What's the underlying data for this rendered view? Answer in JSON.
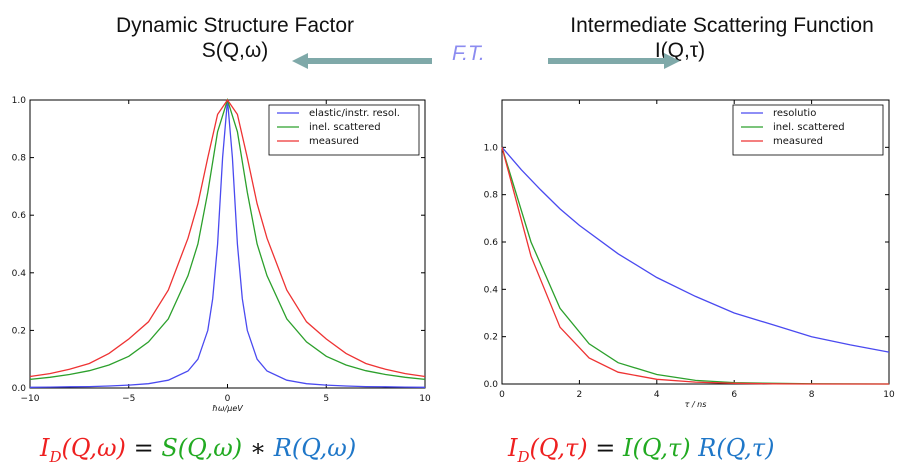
{
  "header": {
    "left_title": "Dynamic Structure Factor",
    "left_sub": "S(Q,ω)",
    "right_title": "Intermediate Scattering Function",
    "right_sub": "I(Q,τ)",
    "center": "F.T."
  },
  "colors": {
    "blue": "#4a4af0",
    "green": "#2ca02c",
    "red": "#ee3333",
    "arrow": "#7fa9a9"
  },
  "equations": {
    "left": {
      "lhs": "I",
      "lhs_sub": "D",
      "lhs_args": "(Q,ω)",
      "eq": "=",
      "t1": "S(Q,ω)",
      "op": "∗",
      "t2": "R(Q,ω)"
    },
    "right": {
      "lhs": "I",
      "lhs_sub": "D",
      "lhs_args": "(Q,τ)",
      "eq": "=",
      "t1": "I(Q,τ)",
      "t2": "R(Q,τ)"
    }
  },
  "chart_data": [
    {
      "type": "line",
      "xlabel": "ħω/μeV",
      "ylabel": "",
      "xlim": [
        -10,
        10
      ],
      "ylim": [
        0,
        1.0
      ],
      "xticks": [
        -10,
        -5,
        0,
        5,
        10
      ],
      "yticks": [
        0.0,
        0.2,
        0.4,
        0.6,
        0.8,
        1.0
      ],
      "legend_position": "top-right",
      "series": [
        {
          "name": "elastic/instr. resol.",
          "color": "blue",
          "x": [
            -10,
            -9,
            -8,
            -7,
            -6,
            -5,
            -4,
            -3,
            -2,
            -1.5,
            -1,
            -0.75,
            -0.5,
            -0.25,
            0,
            0.25,
            0.5,
            0.75,
            1,
            1.5,
            2,
            3,
            4,
            5,
            6,
            7,
            8,
            9,
            10
          ],
          "y": [
            0.0025,
            0.003,
            0.004,
            0.005,
            0.007,
            0.01,
            0.015,
            0.027,
            0.059,
            0.1,
            0.2,
            0.31,
            0.5,
            0.8,
            1.0,
            0.8,
            0.5,
            0.31,
            0.2,
            0.1,
            0.059,
            0.027,
            0.015,
            0.01,
            0.007,
            0.005,
            0.004,
            0.003,
            0.0025
          ]
        },
        {
          "name": "inel. scattered",
          "color": "green",
          "x": [
            -10,
            -9,
            -8,
            -7,
            -6,
            -5,
            -4,
            -3,
            -2,
            -1.5,
            -1,
            -0.5,
            0,
            0.5,
            1,
            1.5,
            2,
            3,
            4,
            5,
            6,
            7,
            8,
            9,
            10
          ],
          "y": [
            0.03,
            0.037,
            0.047,
            0.06,
            0.08,
            0.11,
            0.16,
            0.24,
            0.39,
            0.5,
            0.68,
            0.89,
            1.0,
            0.89,
            0.68,
            0.5,
            0.39,
            0.24,
            0.16,
            0.11,
            0.08,
            0.06,
            0.047,
            0.037,
            0.03
          ]
        },
        {
          "name": "measured",
          "color": "red",
          "x": [
            -10,
            -9,
            -8,
            -7,
            -6,
            -5,
            -4,
            -3,
            -2,
            -1.5,
            -1,
            -0.5,
            0,
            0.5,
            1,
            1.5,
            2,
            3,
            4,
            5,
            6,
            7,
            8,
            9,
            10
          ],
          "y": [
            0.04,
            0.05,
            0.065,
            0.085,
            0.12,
            0.17,
            0.23,
            0.34,
            0.52,
            0.64,
            0.8,
            0.95,
            1.0,
            0.95,
            0.8,
            0.64,
            0.52,
            0.34,
            0.23,
            0.17,
            0.12,
            0.085,
            0.065,
            0.05,
            0.04
          ]
        }
      ]
    },
    {
      "type": "line",
      "xlabel": "τ / ns",
      "ylabel": "",
      "xlim": [
        0,
        10
      ],
      "ylim": [
        0,
        1.2
      ],
      "xticks": [
        0,
        2,
        4,
        6,
        8,
        10
      ],
      "yticks": [
        0.0,
        0.2,
        0.4,
        0.6,
        0.8,
        1.0
      ],
      "legend_position": "top-right",
      "series": [
        {
          "name": "resolutio",
          "color": "blue",
          "x": [
            0,
            0.5,
            1,
            1.5,
            2,
            3,
            4,
            5,
            6,
            7,
            8,
            9,
            10
          ],
          "y": [
            1.0,
            0.905,
            0.82,
            0.74,
            0.67,
            0.55,
            0.45,
            0.37,
            0.3,
            0.25,
            0.2,
            0.165,
            0.135
          ]
        },
        {
          "name": "inel. scattered",
          "color": "green",
          "x": [
            0,
            0.75,
            1.5,
            2.25,
            3,
            4,
            5,
            6,
            7,
            8,
            10
          ],
          "y": [
            1.0,
            0.6,
            0.32,
            0.17,
            0.09,
            0.04,
            0.015,
            0.006,
            0.003,
            0.001,
            0.0
          ]
        },
        {
          "name": "measured",
          "color": "red",
          "x": [
            0,
            0.75,
            1.5,
            2.25,
            3,
            4,
            5,
            6,
            7,
            8,
            10
          ],
          "y": [
            1.0,
            0.54,
            0.24,
            0.11,
            0.05,
            0.02,
            0.008,
            0.003,
            0.001,
            0.0,
            0.0
          ]
        }
      ]
    }
  ]
}
